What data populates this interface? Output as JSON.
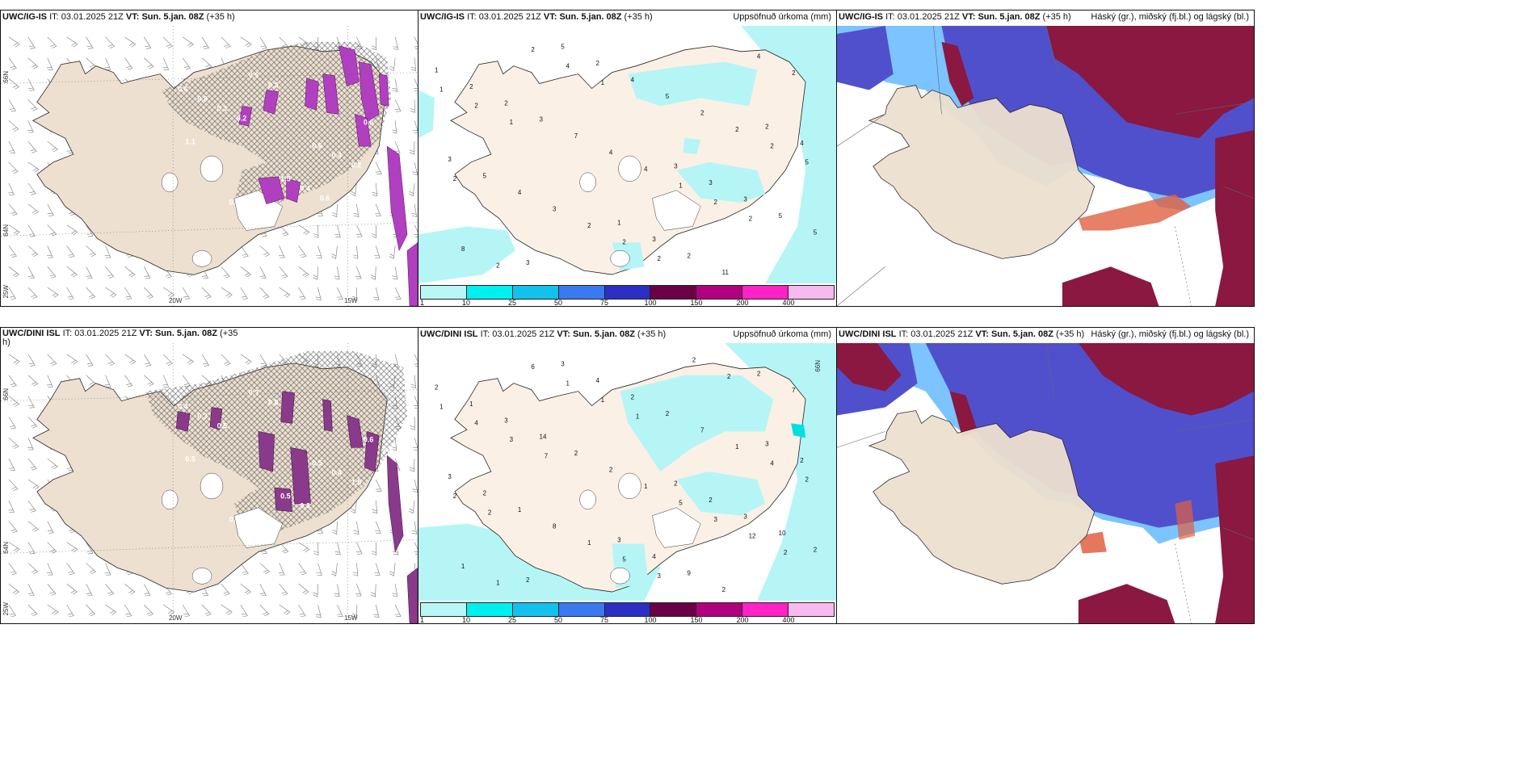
{
  "panels": [
    {
      "model": "UWC/IG-IS",
      "it_label": "IT:",
      "it": "03.01.2025 21Z",
      "vt_label": "VT:",
      "vt": "Sun. 5.jan. 08Z",
      "lead": "(+35 h)",
      "right": "",
      "lat_labels": [
        "66N",
        "64N",
        "25W"
      ],
      "lon_labels": [
        "20W",
        "15W"
      ],
      "values": [
        "0.6",
        "0.6",
        "0.8",
        "0.6",
        "1.5",
        "0.8",
        "0.4",
        "0.5",
        "0.3",
        "0.4",
        "0.3",
        "0.2",
        "0.3",
        "1.1",
        "0.6",
        "0.2"
      ]
    },
    {
      "model": "UWC/IG-IS",
      "it_label": "IT:",
      "it": "03.01.2025 21Z",
      "vt_label": "VT:",
      "vt": "Sun. 5.jan. 08Z",
      "lead": "(+35 h)",
      "right": "Uppsöfnuð úrkoma (mm)",
      "values": [
        "1",
        "3",
        "3",
        "2",
        "1",
        "2",
        "3",
        "5",
        "4",
        "3",
        "2",
        "3",
        "2",
        "3",
        "2",
        "3",
        "5",
        "4",
        "5",
        "11",
        "7",
        "5",
        "5",
        "4",
        "4",
        "4",
        "8",
        "2",
        "3",
        "2",
        "4",
        "2",
        "2",
        "2",
        "1",
        "1",
        "2",
        "2",
        "2",
        "2",
        "2",
        "4",
        "5",
        "2",
        "1",
        "2",
        "1",
        "2"
      ]
    },
    {
      "model": "UWC/IG-IS",
      "it_label": "IT:",
      "it": "03.01.2025 21Z",
      "vt_label": "VT:",
      "vt": "Sun. 5.jan. 08Z",
      "lead": "(+35 h)",
      "right": "Háský (gr.), miðský (fj.bl.) og lágský (bl.)"
    },
    {
      "model": "UWC/DINI ISL",
      "it_label": "IT:",
      "it": "03.01.2025 21Z",
      "vt_label": "VT:",
      "vt": "Sun. 5.jan. 08Z",
      "lead": "(+35",
      "lead2": "h)",
      "right": "",
      "lat_labels": [
        "66N",
        "64N",
        "25W"
      ],
      "lon_labels": [
        "20W",
        "15W"
      ],
      "values": [
        "0.4",
        "0.5",
        "0.6",
        "0.6",
        "0.5",
        "0.3",
        "0.4",
        "0.3",
        "0.4",
        "0.3",
        "0.5",
        "1.5",
        "0.6",
        "0.5"
      ]
    },
    {
      "model": "UWC/DINI ISL",
      "it_label": "IT:",
      "it": "03.01.2025 21Z",
      "vt_label": "VT:",
      "vt": "Sun. 5.jan. 08Z",
      "lead": "(+35 h)",
      "right": "Uppsöfnuð úrkoma (mm)",
      "lat_labels": [
        "66N"
      ],
      "values": [
        "2",
        "2",
        "2",
        "3",
        "3",
        "1",
        "2",
        "3",
        "2",
        "4",
        "3",
        "3",
        "4",
        "3",
        "9",
        "14",
        "10",
        "2",
        "2",
        "2",
        "2",
        "2",
        "2",
        "1",
        "2",
        "2",
        "1",
        "7",
        "8",
        "7",
        "1",
        "1",
        "1",
        "1",
        "1",
        "5",
        "6",
        "4",
        "5",
        "4",
        "3",
        "1",
        "2",
        "3",
        "3",
        "12",
        "1",
        "2",
        "2",
        "7",
        "2",
        "1",
        "2",
        "2"
      ]
    },
    {
      "model": "UWC/DINI ISL",
      "it_label": "IT:",
      "it": "03.01.2025 21Z",
      "vt_label": "VT:",
      "vt": "Sun. 5.jan. 08Z",
      "lead": "(+35 h)",
      "right": "Háský (gr.), miðský (fj.bl.) og lágský (bl.)"
    }
  ],
  "colorbar": {
    "ticks": [
      "1",
      "10",
      "25",
      "50",
      "75",
      "100",
      "150",
      "200",
      "400"
    ],
    "colors": [
      "#b9f7f6",
      "#00f0f0",
      "#12c2ec",
      "#3a79f0",
      "#2d2fc4",
      "#6a0046",
      "#b00080",
      "#ff22c4",
      "#f8b8f0"
    ]
  },
  "colors": {
    "land": "#ede0d0",
    "land_precip": "#faf0e6",
    "sea": "#ffffff",
    "hatch": "#555555",
    "precip_purple": "#a020a0",
    "light_cyan": "#b5f5f5",
    "high_cloud": "#8a1840",
    "mid_cloud": "#5050cc",
    "low_cloud": "#4fb0ff",
    "orange": "#e06040"
  }
}
